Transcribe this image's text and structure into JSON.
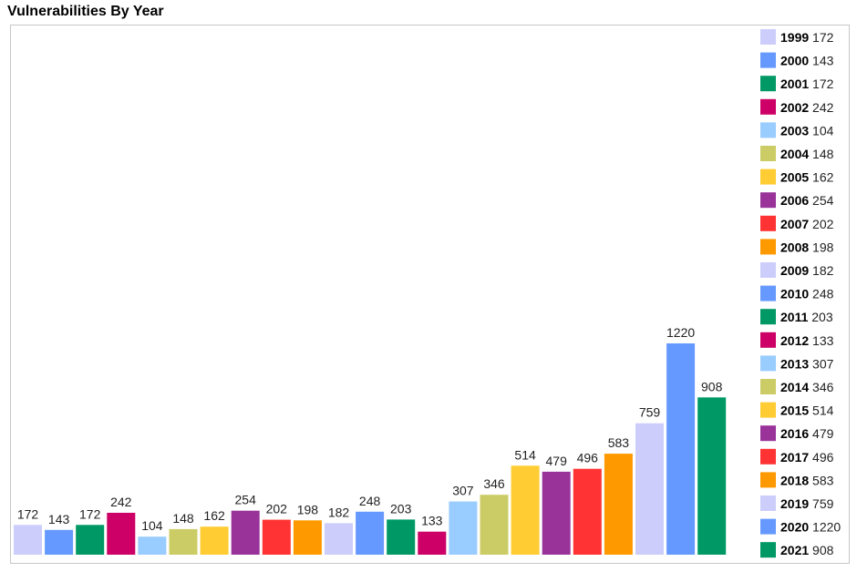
{
  "chart_data": {
    "type": "bar",
    "title": "Vulnerabilities By Year",
    "categories": [
      "1999",
      "2000",
      "2001",
      "2002",
      "2003",
      "2004",
      "2005",
      "2006",
      "2007",
      "2008",
      "2009",
      "2010",
      "2011",
      "2012",
      "2013",
      "2014",
      "2015",
      "2016",
      "2017",
      "2018",
      "2019",
      "2020",
      "2021"
    ],
    "values": [
      172,
      143,
      172,
      242,
      104,
      148,
      162,
      254,
      202,
      198,
      182,
      248,
      203,
      133,
      307,
      346,
      514,
      479,
      496,
      583,
      759,
      1220,
      908
    ],
    "colors": [
      "#cccdfb",
      "#6699ff",
      "#009966",
      "#cc0066",
      "#99ccff",
      "#cccc66",
      "#ffcc33",
      "#993399",
      "#ff3333",
      "#ff9900",
      "#cccdfb",
      "#6699ff",
      "#009966",
      "#cc0066",
      "#99ccff",
      "#cccc66",
      "#ffcc33",
      "#993399",
      "#ff3333",
      "#ff9900",
      "#cccdfb",
      "#6699ff",
      "#009966"
    ],
    "data_labels": true,
    "legend_position": "right",
    "grid": false
  }
}
